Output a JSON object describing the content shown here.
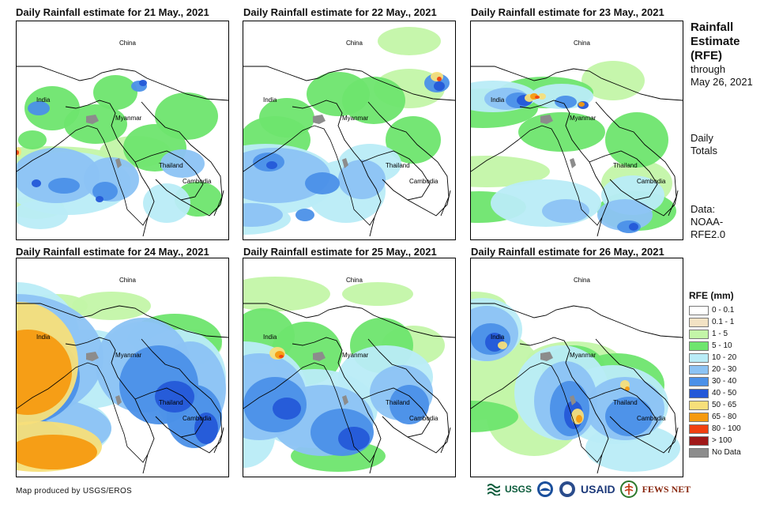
{
  "panels": [
    {
      "title": "Daily Rainfall estimate for 21 May., 2021"
    },
    {
      "title": "Daily Rainfall estimate for 22 May., 2021"
    },
    {
      "title": "Daily Rainfall estimate for 23 May., 2021"
    },
    {
      "title": "Daily Rainfall estimate for 24 May., 2021"
    },
    {
      "title": "Daily Rainfall estimate for 25 May., 2021"
    },
    {
      "title": "Daily Rainfall estimate for 26 May., 2021"
    }
  ],
  "map_labels": {
    "china": "China",
    "india": "India",
    "myanmar": "Myanmar",
    "thailand": "Thailand",
    "cambodia": "Cambodia"
  },
  "sidebar": {
    "heading1": "Rainfall",
    "heading2": "Estimate",
    "heading3": "(RFE)",
    "through": "through",
    "date": "May 26, 2021",
    "daily": "Daily",
    "totals": "Totals",
    "data_label": "Data:",
    "data_source1": "NOAA-",
    "data_source2": "RFE2.0"
  },
  "legend": {
    "title": "RFE (mm)",
    "items": [
      {
        "label": "0 - 0.1",
        "color": "#ffffff"
      },
      {
        "label": "0.1 - 1",
        "color": "#f2e2c4"
      },
      {
        "label": "1 - 5",
        "color": "#c3f5a8"
      },
      {
        "label": "5 - 10",
        "color": "#6ee56e"
      },
      {
        "label": "10 - 20",
        "color": "#b9ecf7"
      },
      {
        "label": "20 - 30",
        "color": "#8cc3f4"
      },
      {
        "label": "30 - 40",
        "color": "#4b90e8"
      },
      {
        "label": "40 - 50",
        "color": "#2458d8"
      },
      {
        "label": "50 - 65",
        "color": "#f7df7a"
      },
      {
        "label": "65 - 80",
        "color": "#f59a10"
      },
      {
        "label": "80 - 100",
        "color": "#f04010"
      },
      {
        "label": "> 100",
        "color": "#a01818"
      },
      {
        "label": "No Data",
        "color": "#8c8c8c"
      }
    ]
  },
  "credit": "Map produced by USGS/EROS",
  "logos": {
    "usgs": "USGS",
    "usaid": "USAID",
    "fewsnet": "FEWS NET"
  }
}
